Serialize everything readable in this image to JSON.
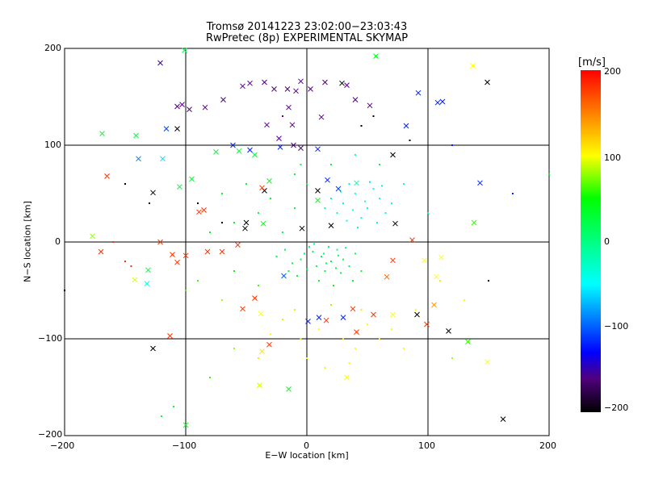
{
  "chart_data": {
    "type": "scatter",
    "title": "Tromsø 20141223 23:02:00−23:03:43",
    "subtitle": "RwPretec (8p) EXPERIMENTAL SKYMAP",
    "xlabel": "E−W location [km]",
    "ylabel": "N−S location [km]",
    "xlim": [
      -200,
      200
    ],
    "ylim": [
      -200,
      200
    ],
    "xticks": [
      "−200",
      "−100",
      "0",
      "100",
      "200"
    ],
    "yticks": [
      "200",
      "100",
      "0",
      "−100",
      "−200"
    ],
    "grid": true,
    "colorbar": {
      "label": "[m/s]",
      "range": [
        -200,
        200
      ],
      "ticks": [
        "200",
        "100",
        "0",
        "−100",
        "−200"
      ],
      "stops": [
        [
          -200,
          "#000000"
        ],
        [
          -160,
          "#500080"
        ],
        [
          -130,
          "#0000ff"
        ],
        [
          -100,
          "#0060ff"
        ],
        [
          -50,
          "#00ffff"
        ],
        [
          0,
          "#00ff80"
        ],
        [
          50,
          "#00ff00"
        ],
        [
          100,
          "#ffff00"
        ],
        [
          150,
          "#ff8000"
        ],
        [
          200,
          "#ff0000"
        ]
      ]
    },
    "crosses": [
      [
        -121,
        185,
        -150
      ],
      [
        -169,
        112,
        30
      ],
      [
        -101,
        198,
        20
      ],
      [
        57,
        192,
        40
      ],
      [
        137,
        182,
        100
      ],
      [
        149,
        165,
        -200
      ],
      [
        92,
        154,
        -120
      ],
      [
        112,
        145,
        -120
      ],
      [
        -107,
        140,
        -160
      ],
      [
        -116,
        117,
        -110
      ],
      [
        -107,
        117,
        -200
      ],
      [
        -141,
        110,
        30
      ],
      [
        -139,
        86,
        -90
      ],
      [
        -119,
        86,
        -60
      ],
      [
        -165,
        68,
        180
      ],
      [
        -95,
        65,
        30
      ],
      [
        -105,
        57,
        20
      ],
      [
        -127,
        51,
        -200
      ],
      [
        -177,
        6,
        80
      ],
      [
        -121,
        0,
        180
      ],
      [
        -111,
        -13,
        180
      ],
      [
        -100,
        -14,
        180
      ],
      [
        -107,
        -21,
        180
      ],
      [
        -70,
        -10,
        180
      ],
      [
        -57,
        -3,
        180
      ],
      [
        -131,
        -29,
        30
      ],
      [
        -132,
        -43,
        -40
      ],
      [
        -142,
        -39,
        90
      ],
      [
        -43,
        -58,
        180
      ],
      [
        -38,
        -74,
        100
      ],
      [
        -53,
        -69,
        180
      ],
      [
        -113,
        -97,
        180
      ],
      [
        -127,
        -110,
        -200
      ],
      [
        -37,
        -113,
        110
      ],
      [
        -15,
        -152,
        40
      ],
      [
        -39,
        -148,
        90
      ],
      [
        -100,
        -189,
        40
      ],
      [
        162,
        -183,
        -200
      ],
      [
        117,
        -92,
        -200
      ],
      [
        99,
        -85,
        180
      ],
      [
        91,
        -75,
        -200
      ],
      [
        105,
        -65,
        140
      ],
      [
        133,
        -103,
        60
      ],
      [
        149,
        -124,
        100
      ],
      [
        107,
        -36,
        100
      ],
      [
        97,
        -19,
        100
      ],
      [
        111,
        -16,
        100
      ],
      [
        71,
        -19,
        180
      ],
      [
        87,
        2,
        180
      ],
      [
        73,
        19,
        -200
      ],
      [
        138,
        20,
        60
      ],
      [
        143,
        61,
        -120
      ],
      [
        71,
        90,
        -200
      ],
      [
        41,
        61,
        -20
      ],
      [
        17,
        64,
        -120
      ],
      [
        26,
        55,
        -110
      ],
      [
        9,
        53,
        -200
      ],
      [
        9,
        43,
        40
      ],
      [
        -31,
        63,
        40
      ],
      [
        -35,
        53,
        -200
      ],
      [
        -37,
        56,
        180
      ],
      [
        -50,
        20,
        -200
      ],
      [
        -51,
        14,
        -200
      ],
      [
        -36,
        19,
        40
      ],
      [
        -4,
        14,
        -200
      ],
      [
        20,
        17,
        -200
      ],
      [
        10,
        -78,
        -120
      ],
      [
        1,
        -82,
        -120
      ],
      [
        16,
        -81,
        180
      ],
      [
        38,
        -69,
        180
      ],
      [
        55,
        -75,
        180
      ],
      [
        41,
        -93,
        180
      ],
      [
        30,
        -78,
        -120
      ],
      [
        71,
        -75,
        100
      ],
      [
        66,
        -36,
        160
      ],
      [
        -19,
        -35,
        -100
      ],
      [
        -31,
        -106,
        180
      ],
      [
        33,
        -140,
        100
      ],
      [
        3,
        158,
        -160
      ],
      [
        12,
        129,
        -160
      ],
      [
        -12,
        121,
        -160
      ],
      [
        -33,
        121,
        -160
      ],
      [
        -43,
        90,
        30
      ],
      [
        -56,
        94,
        30
      ],
      [
        -75,
        93,
        30
      ],
      [
        -103,
        142,
        -160
      ],
      [
        -97,
        137,
        -160
      ],
      [
        -84,
        139,
        -160
      ],
      [
        -69,
        147,
        -160
      ],
      [
        -53,
        161,
        -160
      ],
      [
        -47,
        164,
        -160
      ],
      [
        -35,
        165,
        -160
      ],
      [
        -27,
        158,
        -160
      ],
      [
        -16,
        158,
        -160
      ],
      [
        -9,
        156,
        -160
      ],
      [
        -15,
        139,
        -160
      ],
      [
        -5,
        166,
        -160
      ],
      [
        15,
        165,
        -160
      ],
      [
        29,
        164,
        -200
      ],
      [
        33,
        162,
        -160
      ],
      [
        40,
        147,
        -160
      ],
      [
        52,
        141,
        -160
      ],
      [
        82,
        120,
        -120
      ],
      [
        108,
        144,
        -120
      ],
      [
        -11,
        100,
        -160
      ],
      [
        -5,
        97,
        -160
      ],
      [
        -23,
        107,
        -160
      ],
      [
        -22,
        98,
        -120
      ],
      [
        -61,
        100,
        -120
      ],
      [
        -47,
        95,
        -120
      ],
      [
        9,
        96,
        -120
      ],
      [
        -89,
        31,
        180
      ],
      [
        -85,
        33,
        180
      ],
      [
        -170,
        -10,
        180
      ],
      [
        -82,
        -10,
        180
      ]
    ],
    "dots": [
      [
        5,
        -10,
        20
      ],
      [
        12,
        -15,
        10
      ],
      [
        20,
        -20,
        30
      ],
      [
        25,
        -8,
        0
      ],
      [
        8,
        -25,
        20
      ],
      [
        30,
        -18,
        10
      ],
      [
        15,
        -30,
        30
      ],
      [
        -5,
        -18,
        20
      ],
      [
        -12,
        -22,
        40
      ],
      [
        35,
        -25,
        20
      ],
      [
        2,
        -5,
        0
      ],
      [
        18,
        -5,
        10
      ],
      [
        28,
        -32,
        30
      ],
      [
        -8,
        -35,
        40
      ],
      [
        40,
        -12,
        20
      ],
      [
        10,
        -40,
        40
      ],
      [
        22,
        -45,
        50
      ],
      [
        -18,
        -8,
        20
      ],
      [
        45,
        -30,
        30
      ],
      [
        0,
        -28,
        20
      ],
      [
        6,
        -2,
        -10
      ],
      [
        14,
        -12,
        0
      ],
      [
        -2,
        -12,
        10
      ],
      [
        26,
        -14,
        5
      ],
      [
        32,
        -6,
        -5
      ],
      [
        -15,
        -30,
        30
      ],
      [
        38,
        -40,
        40
      ],
      [
        -25,
        -15,
        30
      ],
      [
        16,
        -22,
        15
      ],
      [
        24,
        -27,
        25
      ],
      [
        30,
        40,
        -40
      ],
      [
        40,
        50,
        -50
      ],
      [
        50,
        35,
        -45
      ],
      [
        25,
        30,
        -30
      ],
      [
        45,
        25,
        -40
      ],
      [
        60,
        45,
        -50
      ],
      [
        35,
        60,
        -55
      ],
      [
        55,
        55,
        -50
      ],
      [
        20,
        45,
        -35
      ],
      [
        65,
        30,
        -40
      ],
      [
        48,
        42,
        -48
      ],
      [
        38,
        33,
        -42
      ],
      [
        58,
        20,
        -40
      ],
      [
        28,
        52,
        -45
      ],
      [
        70,
        40,
        -50
      ],
      [
        42,
        15,
        -30
      ],
      [
        52,
        62,
        -60
      ],
      [
        15,
        35,
        -25
      ],
      [
        33,
        22,
        -35
      ],
      [
        62,
        58,
        -55
      ],
      [
        -10,
        -70,
        90
      ],
      [
        10,
        -90,
        100
      ],
      [
        30,
        -100,
        110
      ],
      [
        50,
        -85,
        100
      ],
      [
        -30,
        -95,
        100
      ],
      [
        20,
        -65,
        80
      ],
      [
        40,
        -110,
        100
      ],
      [
        60,
        -100,
        110
      ],
      [
        0,
        -120,
        100
      ],
      [
        -20,
        -80,
        90
      ],
      [
        70,
        -90,
        100
      ],
      [
        15,
        -130,
        90
      ],
      [
        45,
        -70,
        90
      ],
      [
        -5,
        -100,
        100
      ],
      [
        80,
        -110,
        100
      ],
      [
        35,
        -125,
        100
      ],
      [
        -40,
        -120,
        110
      ],
      [
        90,
        -70,
        100
      ],
      [
        -60,
        20,
        40
      ],
      [
        -40,
        30,
        30
      ],
      [
        -20,
        10,
        20
      ],
      [
        -70,
        50,
        40
      ],
      [
        -30,
        45,
        40
      ],
      [
        -50,
        60,
        30
      ],
      [
        -10,
        35,
        30
      ],
      [
        -80,
        10,
        40
      ],
      [
        -90,
        -40,
        60
      ],
      [
        -60,
        -30,
        50
      ],
      [
        -40,
        -45,
        60
      ],
      [
        -70,
        -60,
        80
      ],
      [
        -100,
        -50,
        60
      ],
      [
        -80,
        -140,
        60
      ],
      [
        -110,
        -170,
        40
      ],
      [
        -60,
        -110,
        80
      ],
      [
        80,
        60,
        -40
      ],
      [
        100,
        30,
        -30
      ],
      [
        110,
        -40,
        90
      ],
      [
        120,
        -120,
        80
      ],
      [
        130,
        -60,
        100
      ],
      [
        -130,
        40,
        -200
      ],
      [
        -150,
        60,
        -200
      ],
      [
        -90,
        40,
        -200
      ],
      [
        -70,
        20,
        -200
      ],
      [
        150,
        -40,
        -200
      ],
      [
        85,
        105,
        -200
      ],
      [
        55,
        130,
        -200
      ],
      [
        45,
        120,
        -200
      ],
      [
        -120,
        -180,
        30
      ],
      [
        -160,
        0,
        180
      ],
      [
        -200,
        -50,
        -200
      ],
      [
        200,
        70,
        40
      ],
      [
        170,
        50,
        -120
      ],
      [
        120,
        100,
        -120
      ],
      [
        -150,
        -20,
        180
      ],
      [
        -145,
        -25,
        180
      ],
      [
        -10,
        70,
        30
      ],
      [
        0,
        60,
        30
      ],
      [
        -5,
        80,
        20
      ],
      [
        20,
        80,
        30
      ],
      [
        60,
        80,
        30
      ],
      [
        40,
        90,
        -30
      ],
      [
        -20,
        130,
        -160
      ]
    ]
  }
}
